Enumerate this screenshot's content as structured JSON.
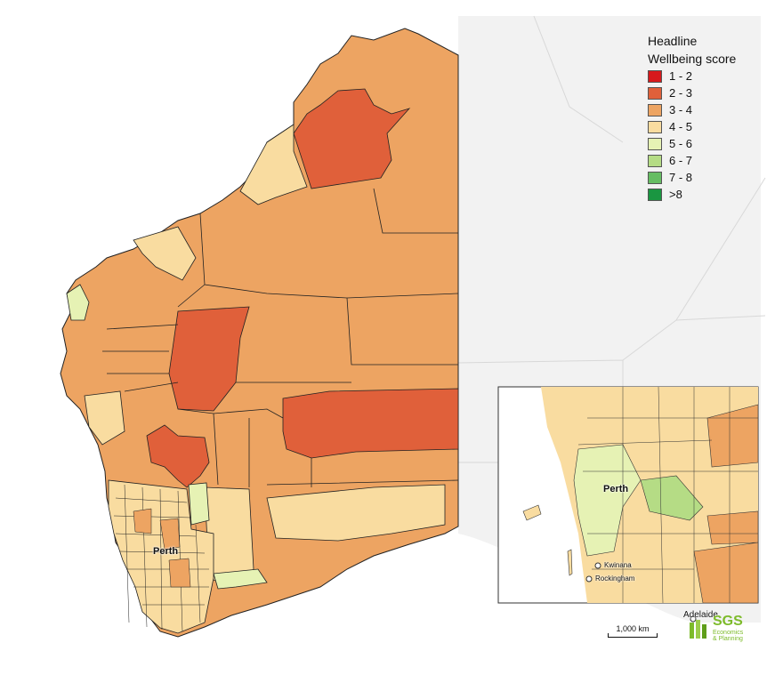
{
  "legend": {
    "title_line1": "Headline",
    "title_line2": "Wellbeing score",
    "items": [
      {
        "label": "1 - 2",
        "color": "#d7191c"
      },
      {
        "label": "2 - 3",
        "color": "#e0603a"
      },
      {
        "label": "3 - 4",
        "color": "#eda462"
      },
      {
        "label": "4 - 5",
        "color": "#f9dca0"
      },
      {
        "label": "5 - 6",
        "color": "#e6f2b4"
      },
      {
        "label": "6 - 7",
        "color": "#b5dc85"
      },
      {
        "label": "7 - 8",
        "color": "#66bd63"
      },
      {
        "label": ">8",
        "color": "#1a9641"
      }
    ]
  },
  "places": {
    "perth_main": "Perth",
    "perth_inset": "Perth",
    "kwinana": "Kwinana",
    "rockingham": "Rockingham",
    "adelaide": "Adelaide"
  },
  "scale": {
    "label": "1,000 km"
  },
  "logo": {
    "name": "SGS",
    "sub1": "Economics",
    "sub2": "& Planning"
  }
}
